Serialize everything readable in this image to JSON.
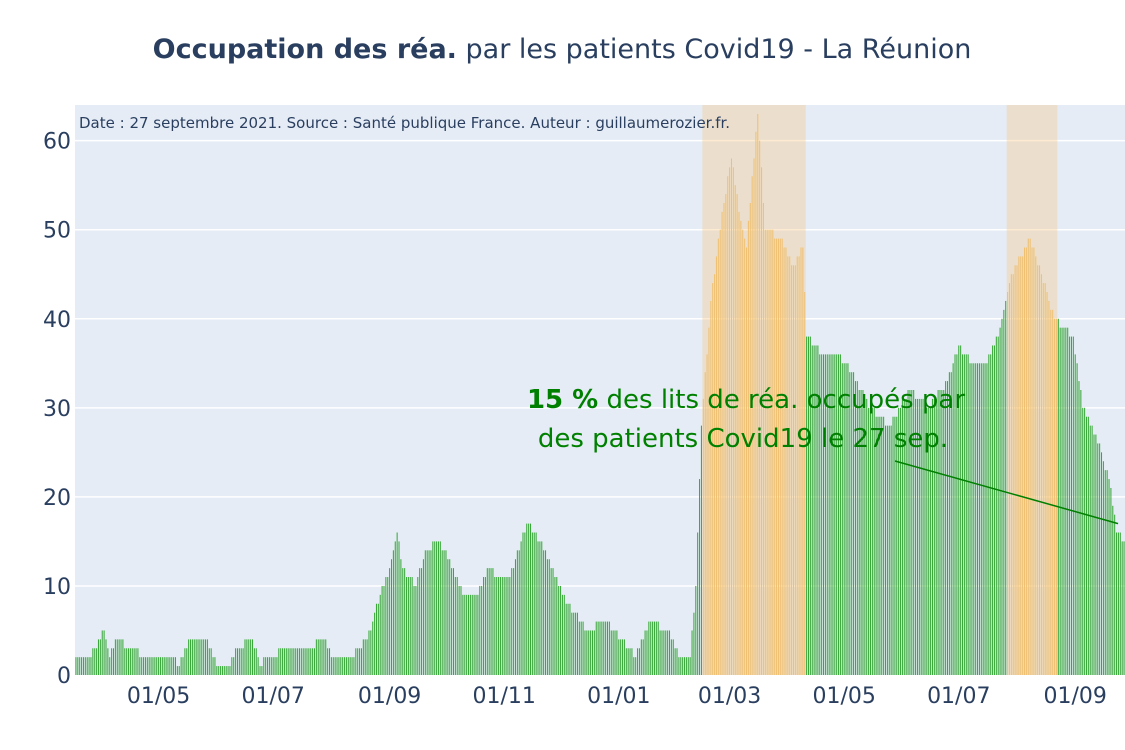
{
  "chart_data": {
    "type": "bar",
    "title_bold": "Occupation des réa.",
    "title_rest": " par les patients Covid19 - La Réunion",
    "source_note": "Date : 27 septembre 2021. Source : Santé publique France. Auteur : guillaumerozier.fr.",
    "xlabel": "",
    "ylabel": "",
    "x_start": "2020-03-18",
    "x_end": "2021-09-27",
    "ylim": [
      0,
      64
    ],
    "y_ticks": [
      0,
      10,
      20,
      30,
      40,
      50,
      60
    ],
    "x_ticks": [
      {
        "date": "2020-05-01",
        "label": "01/05"
      },
      {
        "date": "2020-07-01",
        "label": "01/07"
      },
      {
        "date": "2020-09-01",
        "label": "01/09"
      },
      {
        "date": "2020-11-01",
        "label": "01/11"
      },
      {
        "date": "2021-01-01",
        "label": "01/01"
      },
      {
        "date": "2021-03-01",
        "label": "01/03"
      },
      {
        "date": "2021-05-01",
        "label": "01/05"
      },
      {
        "date": "2021-07-01",
        "label": "01/07"
      },
      {
        "date": "2021-09-01",
        "label": "01/09"
      }
    ],
    "grid": true,
    "bar_color": "#38a838",
    "highlight_color": "#f5c77e",
    "highlight_ranges": [
      [
        "2021-02-15",
        "2021-04-10"
      ],
      [
        "2021-07-27",
        "2021-08-22"
      ]
    ],
    "series": [
      {
        "keypoints": [
          [
            "2020-03-18",
            2
          ],
          [
            "2020-03-25",
            2
          ],
          [
            "2020-03-29",
            3
          ],
          [
            "2020-04-02",
            5
          ],
          [
            "2020-04-05",
            2
          ],
          [
            "2020-04-09",
            4
          ],
          [
            "2020-04-16",
            3
          ],
          [
            "2020-04-25",
            2
          ],
          [
            "2020-05-08",
            2
          ],
          [
            "2020-05-12",
            1
          ],
          [
            "2020-05-18",
            4
          ],
          [
            "2020-05-26",
            4
          ],
          [
            "2020-06-02",
            1
          ],
          [
            "2020-06-08",
            1
          ],
          [
            "2020-06-12",
            3
          ],
          [
            "2020-06-20",
            4
          ],
          [
            "2020-06-24",
            1
          ],
          [
            "2020-06-28",
            2
          ],
          [
            "2020-07-10",
            3
          ],
          [
            "2020-07-20",
            3
          ],
          [
            "2020-07-28",
            4
          ],
          [
            "2020-08-02",
            2
          ],
          [
            "2020-08-12",
            2
          ],
          [
            "2020-08-20",
            4
          ],
          [
            "2020-08-27",
            9
          ],
          [
            "2020-09-01",
            12
          ],
          [
            "2020-09-05",
            16
          ],
          [
            "2020-09-08",
            12
          ],
          [
            "2020-09-15",
            10
          ],
          [
            "2020-09-20",
            14
          ],
          [
            "2020-09-27",
            15
          ],
          [
            "2020-10-05",
            12
          ],
          [
            "2020-10-10",
            9
          ],
          [
            "2020-10-18",
            9
          ],
          [
            "2020-10-24",
            12
          ],
          [
            "2020-10-28",
            11
          ],
          [
            "2020-11-04",
            11
          ],
          [
            "2020-11-10",
            15
          ],
          [
            "2020-11-14",
            17
          ],
          [
            "2020-11-20",
            15
          ],
          [
            "2020-11-28",
            11
          ],
          [
            "2020-12-05",
            8
          ],
          [
            "2020-12-15",
            5
          ],
          [
            "2020-12-25",
            6
          ],
          [
            "2021-01-03",
            4
          ],
          [
            "2021-01-10",
            2
          ],
          [
            "2021-01-17",
            6
          ],
          [
            "2021-01-27",
            5
          ],
          [
            "2021-02-03",
            2
          ],
          [
            "2021-02-08",
            2
          ],
          [
            "2021-02-11",
            10
          ],
          [
            "2021-02-14",
            28
          ],
          [
            "2021-02-19",
            42
          ],
          [
            "2021-02-25",
            52
          ],
          [
            "2021-03-02",
            58
          ],
          [
            "2021-03-06",
            52
          ],
          [
            "2021-03-10",
            48
          ],
          [
            "2021-03-14",
            58
          ],
          [
            "2021-03-16",
            63
          ],
          [
            "2021-03-20",
            50
          ],
          [
            "2021-03-28",
            49
          ],
          [
            "2021-04-04",
            46
          ],
          [
            "2021-04-09",
            48
          ],
          [
            "2021-04-11",
            38
          ],
          [
            "2021-04-20",
            36
          ],
          [
            "2021-04-28",
            36
          ],
          [
            "2021-05-05",
            34
          ],
          [
            "2021-05-15",
            30
          ],
          [
            "2021-05-25",
            28
          ],
          [
            "2021-06-05",
            32
          ],
          [
            "2021-06-15",
            30
          ],
          [
            "2021-06-25",
            33
          ],
          [
            "2021-07-01",
            37
          ],
          [
            "2021-07-08",
            35
          ],
          [
            "2021-07-15",
            35
          ],
          [
            "2021-07-22",
            38
          ],
          [
            "2021-07-28",
            44
          ],
          [
            "2021-08-03",
            47
          ],
          [
            "2021-08-08",
            49
          ],
          [
            "2021-08-14",
            45
          ],
          [
            "2021-08-21",
            40
          ],
          [
            "2021-08-25",
            39
          ],
          [
            "2021-08-31",
            38
          ],
          [
            "2021-09-05",
            30
          ],
          [
            "2021-09-10",
            28
          ],
          [
            "2021-09-15",
            25
          ],
          [
            "2021-09-20",
            21
          ],
          [
            "2021-09-23",
            16
          ],
          [
            "2021-09-27",
            15
          ]
        ]
      }
    ],
    "annotation": {
      "bold": "15  %",
      "line1_rest": " des lits de réa. occupés par",
      "line2": "des patients Covid19 le 27 sep.",
      "color": "#008000",
      "target_date": "2021-09-27",
      "target_value": 17
    }
  }
}
